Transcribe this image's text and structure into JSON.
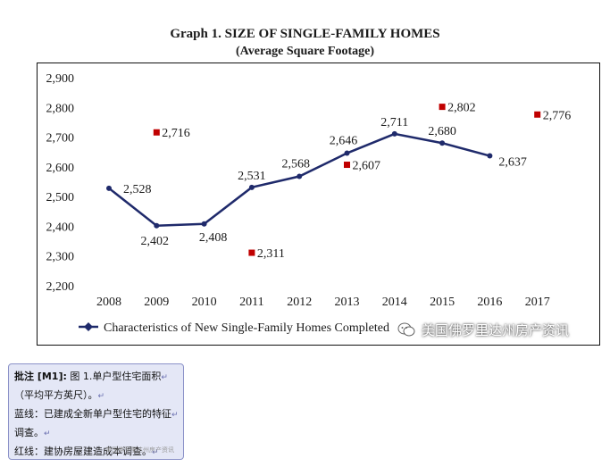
{
  "chart_data": {
    "type": "line",
    "title": "Graph 1. SIZE OF SINGLE-FAMILY HOMES",
    "subtitle": "(Average Square Footage)",
    "categories": [
      "2008",
      "2009",
      "2010",
      "2011",
      "2012",
      "2013",
      "2014",
      "2015",
      "2016",
      "2017"
    ],
    "ylim": [
      2200,
      2900
    ],
    "yticks": [
      "2,900",
      "2,800",
      "2,700",
      "2,600",
      "2,500",
      "2,400",
      "2,300",
      "2,200"
    ],
    "series": [
      {
        "name": "Characteristics of New Single-Family Homes Completed",
        "kind": "line",
        "color": "#1f2a6b",
        "values": [
          2528,
          2402,
          2408,
          2531,
          2568,
          2646,
          2711,
          2680,
          2637,
          null
        ],
        "labels": [
          "2,528",
          "2,402",
          "2,408",
          "2,531",
          "2,568",
          "2,646",
          "2,711",
          "2,680",
          "2,637",
          ""
        ]
      },
      {
        "name": "",
        "kind": "marker",
        "color": "#c00000",
        "values": [
          null,
          2716,
          null,
          2311,
          null,
          2607,
          null,
          2802,
          null,
          2776
        ],
        "labels": [
          "",
          "2,716",
          "",
          "2,311",
          "",
          "2,607",
          "",
          "2,802",
          "",
          "2,776"
        ]
      }
    ],
    "legend": "bottom-left",
    "grid": false
  },
  "watermark": "美国佛罗里达州房产资讯",
  "comment": {
    "header": "批注 [M1]:",
    "lines": [
      "图 1.单户型住宅面积",
      "（平均平方英尺）。",
      "蓝线：已建成全新单户型住宅的特征",
      "调查。",
      "红线：建协房屋建造成本调查。"
    ],
    "small_watermark": "美国佛罗里达州房产资讯"
  }
}
